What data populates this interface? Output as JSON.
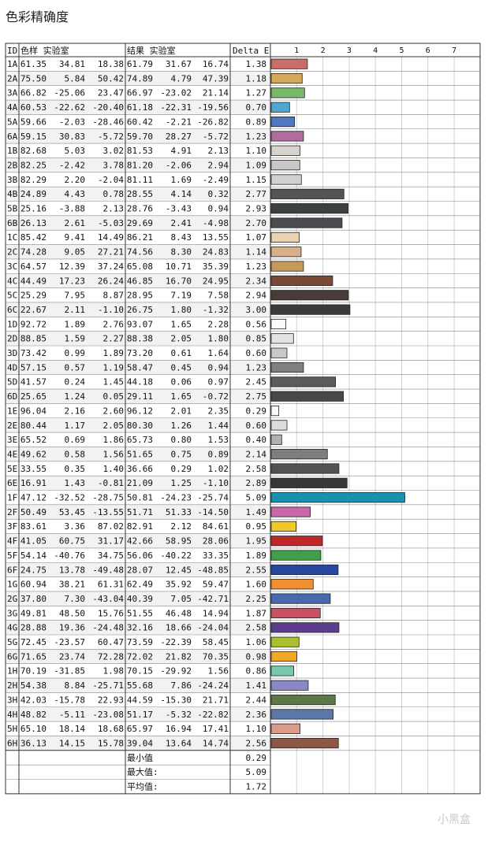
{
  "title": "色彩精确度",
  "watermark": "小黑盒",
  "colors": {
    "grid": "#888888",
    "border": "#333333",
    "row_alt": "#f2f2f2",
    "bar_stroke": "#222222"
  },
  "headers": {
    "id": "ID",
    "target": "色样 实验室",
    "result": "结果 实验室",
    "delta": "Delta E"
  },
  "chart_data": {
    "type": "bar",
    "orientation": "horizontal",
    "xlim": [
      0,
      8
    ],
    "x_ticks": [
      "1",
      "2",
      "3",
      "4",
      "5",
      "6",
      "7"
    ],
    "categories": [
      "1A",
      "2A",
      "3A",
      "4A",
      "5A",
      "6A",
      "1B",
      "2B",
      "3B",
      "4B",
      "5B",
      "6B",
      "1C",
      "2C",
      "3C",
      "4C",
      "5C",
      "6C",
      "1D",
      "2D",
      "3D",
      "4D",
      "5D",
      "6D",
      "1E",
      "2E",
      "3E",
      "4E",
      "5E",
      "6E",
      "1F",
      "2F",
      "3F",
      "4F",
      "5F",
      "6F",
      "1G",
      "2G",
      "3G",
      "4G",
      "5G",
      "6G",
      "1H",
      "2H",
      "3H",
      "4H",
      "5H",
      "6H"
    ],
    "series": [
      {
        "values": [
          1.38,
          1.18,
          1.27,
          0.7,
          0.89,
          1.23,
          1.1,
          1.09,
          1.15,
          2.77,
          2.93,
          2.7,
          1.07,
          1.14,
          1.23,
          2.34,
          2.94,
          3.0,
          0.56,
          0.85,
          0.6,
          1.23,
          2.45,
          2.75,
          0.29,
          0.6,
          0.4,
          2.14,
          2.58,
          2.89,
          5.09,
          1.49,
          0.95,
          1.95,
          1.89,
          2.55,
          1.6,
          2.25,
          1.87,
          2.58,
          1.06,
          0.98,
          0.86,
          1.41,
          2.44,
          2.36,
          1.1,
          2.56
        ]
      }
    ],
    "bar_colors": [
      "#c87068",
      "#d4a95a",
      "#7ab86a",
      "#4ea7d0",
      "#5078c0",
      "#b06c9c",
      "#d8d2cc",
      "#cac8c6",
      "#d2d0ce",
      "#545454",
      "#3c403e",
      "#4c4c50",
      "#ead2b2",
      "#d6b08a",
      "#c6985a",
      "#7a4a32",
      "#483c38",
      "#3a3a3c",
      "#fafafa",
      "#e2e2e0",
      "#c8c8c8",
      "#808080",
      "#5c5c5c",
      "#484848",
      "#fafafa",
      "#dcdcdc",
      "#b0b0b0",
      "#7e7e7e",
      "#525252",
      "#383838",
      "#1890b0",
      "#c868a8",
      "#f0c828",
      "#c02828",
      "#40a048",
      "#2848a0",
      "#f09030",
      "#4868b0",
      "#c85060",
      "#5c3c8c",
      "#a8c030",
      "#f0a828",
      "#78c8b0",
      "#8888c8",
      "#5a7848",
      "#5a78a8",
      "#d89c88",
      "#8a5844"
    ],
    "table": [
      {
        "id": "1A",
        "target": [
          "61.35",
          "34.81",
          "18.38"
        ],
        "result": [
          "61.79",
          "31.67",
          "16.74"
        ],
        "delta": "1.38"
      },
      {
        "id": "2A",
        "target": [
          "75.50",
          "5.84",
          "50.42"
        ],
        "result": [
          "74.89",
          "4.79",
          "47.39"
        ],
        "delta": "1.18"
      },
      {
        "id": "3A",
        "target": [
          "66.82",
          "-25.06",
          "23.47"
        ],
        "result": [
          "66.97",
          "-23.02",
          "21.14"
        ],
        "delta": "1.27"
      },
      {
        "id": "4A",
        "target": [
          "60.53",
          "-22.62",
          "-20.40"
        ],
        "result": [
          "61.18",
          "-22.31",
          "-19.56"
        ],
        "delta": "0.70"
      },
      {
        "id": "5A",
        "target": [
          "59.66",
          "-2.03",
          "-28.46"
        ],
        "result": [
          "60.42",
          "-2.21",
          "-26.82"
        ],
        "delta": "0.89"
      },
      {
        "id": "6A",
        "target": [
          "59.15",
          "30.83",
          "-5.72"
        ],
        "result": [
          "59.70",
          "28.27",
          "-5.72"
        ],
        "delta": "1.23"
      },
      {
        "id": "1B",
        "target": [
          "82.68",
          "5.03",
          "3.02"
        ],
        "result": [
          "81.53",
          "4.91",
          "2.13"
        ],
        "delta": "1.10"
      },
      {
        "id": "2B",
        "target": [
          "82.25",
          "-2.42",
          "3.78"
        ],
        "result": [
          "81.20",
          "-2.06",
          "2.94"
        ],
        "delta": "1.09"
      },
      {
        "id": "3B",
        "target": [
          "82.29",
          "2.20",
          "-2.04"
        ],
        "result": [
          "81.11",
          "1.69",
          "-2.49"
        ],
        "delta": "1.15"
      },
      {
        "id": "4B",
        "target": [
          "24.89",
          "4.43",
          "0.78"
        ],
        "result": [
          "28.55",
          "4.14",
          "0.32"
        ],
        "delta": "2.77"
      },
      {
        "id": "5B",
        "target": [
          "25.16",
          "-3.88",
          "2.13"
        ],
        "result": [
          "28.76",
          "-3.43",
          "0.94"
        ],
        "delta": "2.93"
      },
      {
        "id": "6B",
        "target": [
          "26.13",
          "2.61",
          "-5.03"
        ],
        "result": [
          "29.69",
          "2.41",
          "-4.98"
        ],
        "delta": "2.70"
      },
      {
        "id": "1C",
        "target": [
          "85.42",
          "9.41",
          "14.49"
        ],
        "result": [
          "86.21",
          "8.43",
          "13.55"
        ],
        "delta": "1.07"
      },
      {
        "id": "2C",
        "target": [
          "74.28",
          "9.05",
          "27.21"
        ],
        "result": [
          "74.56",
          "8.30",
          "24.83"
        ],
        "delta": "1.14"
      },
      {
        "id": "3C",
        "target": [
          "64.57",
          "12.39",
          "37.24"
        ],
        "result": [
          "65.08",
          "10.71",
          "35.39"
        ],
        "delta": "1.23"
      },
      {
        "id": "4C",
        "target": [
          "44.49",
          "17.23",
          "26.24"
        ],
        "result": [
          "46.85",
          "16.70",
          "24.95"
        ],
        "delta": "2.34"
      },
      {
        "id": "5C",
        "target": [
          "25.29",
          "7.95",
          "8.87"
        ],
        "result": [
          "28.95",
          "7.19",
          "7.58"
        ],
        "delta": "2.94"
      },
      {
        "id": "6C",
        "target": [
          "22.67",
          "2.11",
          "-1.10"
        ],
        "result": [
          "26.75",
          "1.80",
          "-1.32"
        ],
        "delta": "3.00"
      },
      {
        "id": "1D",
        "target": [
          "92.72",
          "1.89",
          "2.76"
        ],
        "result": [
          "93.07",
          "1.65",
          "2.28"
        ],
        "delta": "0.56"
      },
      {
        "id": "2D",
        "target": [
          "88.85",
          "1.59",
          "2.27"
        ],
        "result": [
          "88.38",
          "2.05",
          "1.80"
        ],
        "delta": "0.85"
      },
      {
        "id": "3D",
        "target": [
          "73.42",
          "0.99",
          "1.89"
        ],
        "result": [
          "73.20",
          "0.61",
          "1.64"
        ],
        "delta": "0.60"
      },
      {
        "id": "4D",
        "target": [
          "57.15",
          "0.57",
          "1.19"
        ],
        "result": [
          "58.47",
          "0.45",
          "0.94"
        ],
        "delta": "1.23"
      },
      {
        "id": "5D",
        "target": [
          "41.57",
          "0.24",
          "1.45"
        ],
        "result": [
          "44.18",
          "0.06",
          "0.97"
        ],
        "delta": "2.45"
      },
      {
        "id": "6D",
        "target": [
          "25.65",
          "1.24",
          "0.05"
        ],
        "result": [
          "29.11",
          "1.65",
          "-0.72"
        ],
        "delta": "2.75"
      },
      {
        "id": "1E",
        "target": [
          "96.04",
          "2.16",
          "2.60"
        ],
        "result": [
          "96.12",
          "2.01",
          "2.35"
        ],
        "delta": "0.29"
      },
      {
        "id": "2E",
        "target": [
          "80.44",
          "1.17",
          "2.05"
        ],
        "result": [
          "80.30",
          "1.26",
          "1.44"
        ],
        "delta": "0.60"
      },
      {
        "id": "3E",
        "target": [
          "65.52",
          "0.69",
          "1.86"
        ],
        "result": [
          "65.73",
          "0.80",
          "1.53"
        ],
        "delta": "0.40"
      },
      {
        "id": "4E",
        "target": [
          "49.62",
          "0.58",
          "1.56"
        ],
        "result": [
          "51.65",
          "0.75",
          "0.89"
        ],
        "delta": "2.14"
      },
      {
        "id": "5E",
        "target": [
          "33.55",
          "0.35",
          "1.40"
        ],
        "result": [
          "36.66",
          "0.29",
          "1.02"
        ],
        "delta": "2.58"
      },
      {
        "id": "6E",
        "target": [
          "16.91",
          "1.43",
          "-0.81"
        ],
        "result": [
          "21.09",
          "1.25",
          "-1.10"
        ],
        "delta": "2.89"
      },
      {
        "id": "1F",
        "target": [
          "47.12",
          "-32.52",
          "-28.75"
        ],
        "result": [
          "50.81",
          "-24.23",
          "-25.74"
        ],
        "delta": "5.09"
      },
      {
        "id": "2F",
        "target": [
          "50.49",
          "53.45",
          "-13.55"
        ],
        "result": [
          "51.71",
          "51.33",
          "-14.50"
        ],
        "delta": "1.49"
      },
      {
        "id": "3F",
        "target": [
          "83.61",
          "3.36",
          "87.02"
        ],
        "result": [
          "82.91",
          "2.12",
          "84.61"
        ],
        "delta": "0.95"
      },
      {
        "id": "4F",
        "target": [
          "41.05",
          "60.75",
          "31.17"
        ],
        "result": [
          "42.66",
          "58.95",
          "28.06"
        ],
        "delta": "1.95"
      },
      {
        "id": "5F",
        "target": [
          "54.14",
          "-40.76",
          "34.75"
        ],
        "result": [
          "56.06",
          "-40.22",
          "33.35"
        ],
        "delta": "1.89"
      },
      {
        "id": "6F",
        "target": [
          "24.75",
          "13.78",
          "-49.48"
        ],
        "result": [
          "28.07",
          "12.45",
          "-48.85"
        ],
        "delta": "2.55"
      },
      {
        "id": "1G",
        "target": [
          "60.94",
          "38.21",
          "61.31"
        ],
        "result": [
          "62.49",
          "35.92",
          "59.47"
        ],
        "delta": "1.60"
      },
      {
        "id": "2G",
        "target": [
          "37.80",
          "7.30",
          "-43.04"
        ],
        "result": [
          "40.39",
          "7.05",
          "-42.71"
        ],
        "delta": "2.25"
      },
      {
        "id": "3G",
        "target": [
          "49.81",
          "48.50",
          "15.76"
        ],
        "result": [
          "51.55",
          "46.48",
          "14.94"
        ],
        "delta": "1.87"
      },
      {
        "id": "4G",
        "target": [
          "28.88",
          "19.36",
          "-24.48"
        ],
        "result": [
          "32.16",
          "18.66",
          "-24.04"
        ],
        "delta": "2.58"
      },
      {
        "id": "5G",
        "target": [
          "72.45",
          "-23.57",
          "60.47"
        ],
        "result": [
          "73.59",
          "-22.39",
          "58.45"
        ],
        "delta": "1.06"
      },
      {
        "id": "6G",
        "target": [
          "71.65",
          "23.74",
          "72.28"
        ],
        "result": [
          "72.02",
          "21.82",
          "70.35"
        ],
        "delta": "0.98"
      },
      {
        "id": "1H",
        "target": [
          "70.19",
          "-31.85",
          "1.98"
        ],
        "result": [
          "70.15",
          "-29.92",
          "1.56"
        ],
        "delta": "0.86"
      },
      {
        "id": "2H",
        "target": [
          "54.38",
          "8.84",
          "-25.71"
        ],
        "result": [
          "55.68",
          "7.86",
          "-24.24"
        ],
        "delta": "1.41"
      },
      {
        "id": "3H",
        "target": [
          "42.03",
          "-15.78",
          "22.93"
        ],
        "result": [
          "44.59",
          "-15.30",
          "21.71"
        ],
        "delta": "2.44"
      },
      {
        "id": "4H",
        "target": [
          "48.82",
          "-5.11",
          "-23.08"
        ],
        "result": [
          "51.17",
          "-5.32",
          "-22.82"
        ],
        "delta": "2.36"
      },
      {
        "id": "5H",
        "target": [
          "65.10",
          "18.14",
          "18.68"
        ],
        "result": [
          "65.97",
          "16.94",
          "17.41"
        ],
        "delta": "1.10"
      },
      {
        "id": "6H",
        "target": [
          "36.13",
          "14.15",
          "15.78"
        ],
        "result": [
          "39.04",
          "13.64",
          "14.74"
        ],
        "delta": "2.56"
      }
    ],
    "summary": [
      {
        "label": "最小值",
        "value": "0.29"
      },
      {
        "label": "最大值:",
        "value": "5.09"
      },
      {
        "label": "平均值:",
        "value": "1.72"
      }
    ]
  }
}
